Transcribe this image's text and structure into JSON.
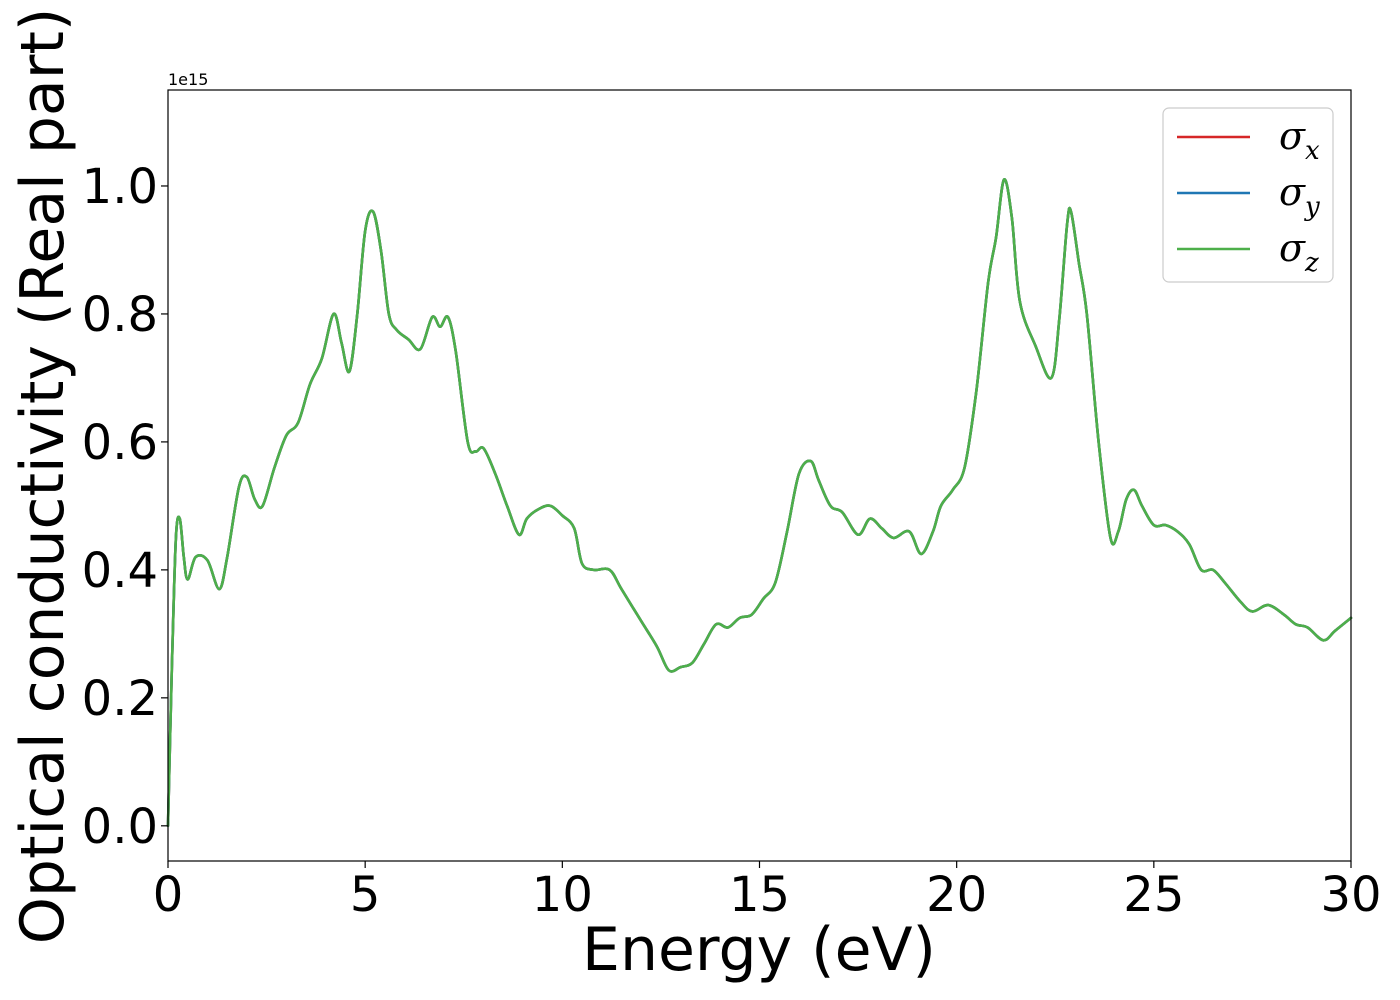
{
  "chart_data": {
    "type": "line",
    "xlabel": "Energy (eV)",
    "ylabel": "Optical conductivity (Real part)",
    "y_offset_label": "1e15",
    "xlim": [
      0,
      30
    ],
    "ylim": [
      -0.055,
      1.15
    ],
    "x_ticks": [
      0,
      5,
      10,
      15,
      20,
      25,
      30
    ],
    "x_tick_labels": [
      "0",
      "5",
      "10",
      "15",
      "20",
      "25",
      "30"
    ],
    "y_ticks": [
      0.0,
      0.2,
      0.4,
      0.6,
      0.8,
      1.0
    ],
    "y_tick_labels": [
      "0.0",
      "0.2",
      "0.4",
      "0.6",
      "0.8",
      "1.0"
    ],
    "grid": false,
    "legend_position": "top-right",
    "series": [
      {
        "name": "σx",
        "symbol": "σ",
        "subscript": "x",
        "color": "#d62728"
      },
      {
        "name": "σy",
        "symbol": "σ",
        "subscript": "y",
        "color": "#1f77b4"
      },
      {
        "name": "σz",
        "symbol": "σ",
        "subscript": "z",
        "color": "#4daf4a"
      }
    ],
    "x": [
      0.0,
      0.1,
      0.2,
      0.3,
      0.4,
      0.5,
      0.7,
      1.0,
      1.3,
      1.5,
      1.8,
      2.0,
      2.2,
      2.4,
      2.7,
      3.0,
      3.3,
      3.6,
      3.9,
      4.2,
      4.4,
      4.6,
      4.8,
      5.0,
      5.2,
      5.4,
      5.6,
      5.8,
      6.1,
      6.4,
      6.7,
      6.9,
      7.1,
      7.3,
      7.6,
      7.8,
      8.0,
      8.3,
      8.6,
      8.9,
      9.1,
      9.4,
      9.7,
      10.0,
      10.3,
      10.5,
      10.8,
      11.2,
      11.5,
      12.0,
      12.4,
      12.7,
      13.0,
      13.3,
      13.6,
      13.9,
      14.2,
      14.5,
      14.8,
      15.1,
      15.4,
      15.7,
      16.0,
      16.3,
      16.5,
      16.8,
      17.1,
      17.5,
      17.8,
      18.1,
      18.4,
      18.8,
      19.1,
      19.4,
      19.6,
      19.9,
      20.2,
      20.5,
      20.8,
      21.0,
      21.2,
      21.4,
      21.6,
      22.0,
      22.4,
      22.6,
      22.8,
      22.9,
      23.1,
      23.3,
      23.6,
      23.9,
      24.1,
      24.3,
      24.5,
      24.7,
      25.0,
      25.3,
      25.6,
      25.9,
      26.2,
      26.5,
      26.8,
      27.2,
      27.5,
      27.9,
      28.3,
      28.6,
      28.9,
      29.3,
      29.6,
      30.0
    ],
    "y": [
      0.0,
      0.25,
      0.45,
      0.48,
      0.42,
      0.385,
      0.42,
      0.415,
      0.37,
      0.42,
      0.53,
      0.545,
      0.51,
      0.5,
      0.56,
      0.61,
      0.63,
      0.69,
      0.73,
      0.8,
      0.755,
      0.71,
      0.8,
      0.93,
      0.96,
      0.9,
      0.8,
      0.775,
      0.76,
      0.745,
      0.795,
      0.78,
      0.795,
      0.74,
      0.6,
      0.585,
      0.59,
      0.55,
      0.5,
      0.455,
      0.48,
      0.495,
      0.5,
      0.485,
      0.465,
      0.41,
      0.4,
      0.4,
      0.37,
      0.32,
      0.28,
      0.243,
      0.248,
      0.255,
      0.285,
      0.315,
      0.31,
      0.325,
      0.33,
      0.355,
      0.38,
      0.46,
      0.55,
      0.57,
      0.54,
      0.5,
      0.49,
      0.455,
      0.48,
      0.465,
      0.45,
      0.46,
      0.425,
      0.46,
      0.5,
      0.525,
      0.56,
      0.68,
      0.85,
      0.92,
      1.01,
      0.95,
      0.82,
      0.75,
      0.7,
      0.79,
      0.94,
      0.96,
      0.88,
      0.8,
      0.6,
      0.45,
      0.46,
      0.51,
      0.525,
      0.5,
      0.47,
      0.47,
      0.46,
      0.44,
      0.4,
      0.4,
      0.38,
      0.35,
      0.335,
      0.345,
      0.33,
      0.315,
      0.31,
      0.29,
      0.305,
      0.325
    ]
  }
}
